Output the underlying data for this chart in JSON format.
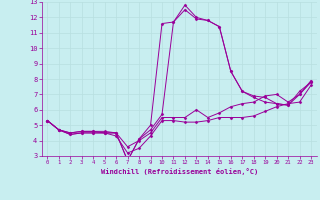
{
  "xlabel": "Windchill (Refroidissement éolien,°C)",
  "xlim": [
    -0.5,
    23.5
  ],
  "ylim": [
    3,
    13
  ],
  "yticks": [
    3,
    4,
    5,
    6,
    7,
    8,
    9,
    10,
    11,
    12,
    13
  ],
  "xticks": [
    0,
    1,
    2,
    3,
    4,
    5,
    6,
    7,
    8,
    9,
    10,
    11,
    12,
    13,
    14,
    15,
    16,
    17,
    18,
    19,
    20,
    21,
    22,
    23
  ],
  "bg_color": "#c8eef0",
  "line_color": "#990099",
  "grid_color": "#b8dfe0",
  "lines": [
    {
      "x": [
        0,
        1,
        2,
        3,
        4,
        5,
        6,
        7,
        8,
        9,
        10,
        11,
        12,
        13,
        14,
        15,
        16,
        17,
        18,
        19,
        20,
        21,
        22,
        23
      ],
      "y": [
        5.3,
        4.7,
        4.4,
        4.5,
        4.5,
        4.5,
        4.3,
        3.2,
        3.5,
        4.3,
        5.3,
        5.3,
        5.2,
        5.2,
        5.3,
        5.5,
        5.5,
        5.5,
        5.6,
        5.9,
        6.2,
        6.4,
        6.5,
        7.6
      ]
    },
    {
      "x": [
        0,
        1,
        2,
        3,
        4,
        5,
        6,
        7,
        8,
        9,
        10,
        11,
        12,
        13,
        14,
        15,
        16,
        17,
        18,
        19,
        20,
        21,
        22,
        23
      ],
      "y": [
        5.3,
        4.7,
        4.4,
        4.5,
        4.5,
        4.5,
        4.5,
        3.6,
        4.0,
        4.5,
        5.5,
        5.5,
        5.5,
        6.0,
        5.5,
        5.8,
        6.2,
        6.4,
        6.5,
        6.9,
        7.0,
        6.5,
        7.0,
        7.8
      ]
    },
    {
      "x": [
        0,
        1,
        2,
        3,
        4,
        5,
        6,
        7,
        8,
        9,
        10,
        11,
        12,
        13,
        14,
        15,
        16,
        17,
        18,
        19,
        20,
        21,
        22,
        23
      ],
      "y": [
        5.3,
        4.7,
        4.5,
        4.6,
        4.6,
        4.5,
        4.5,
        2.7,
        4.1,
        5.0,
        11.6,
        11.7,
        12.8,
        12.0,
        11.8,
        11.4,
        8.5,
        7.2,
        6.8,
        6.5,
        6.4,
        6.3,
        7.2,
        7.8
      ]
    },
    {
      "x": [
        0,
        1,
        2,
        3,
        4,
        5,
        6,
        7,
        8,
        9,
        10,
        11,
        12,
        13,
        14,
        15,
        16,
        17,
        18,
        19,
        20,
        21,
        22,
        23
      ],
      "y": [
        5.3,
        4.7,
        4.5,
        4.6,
        4.6,
        4.6,
        4.5,
        2.7,
        4.1,
        4.7,
        5.7,
        11.7,
        12.5,
        11.9,
        11.8,
        11.4,
        8.5,
        7.2,
        6.9,
        6.8,
        6.4,
        6.3,
        7.0,
        7.9
      ]
    }
  ]
}
